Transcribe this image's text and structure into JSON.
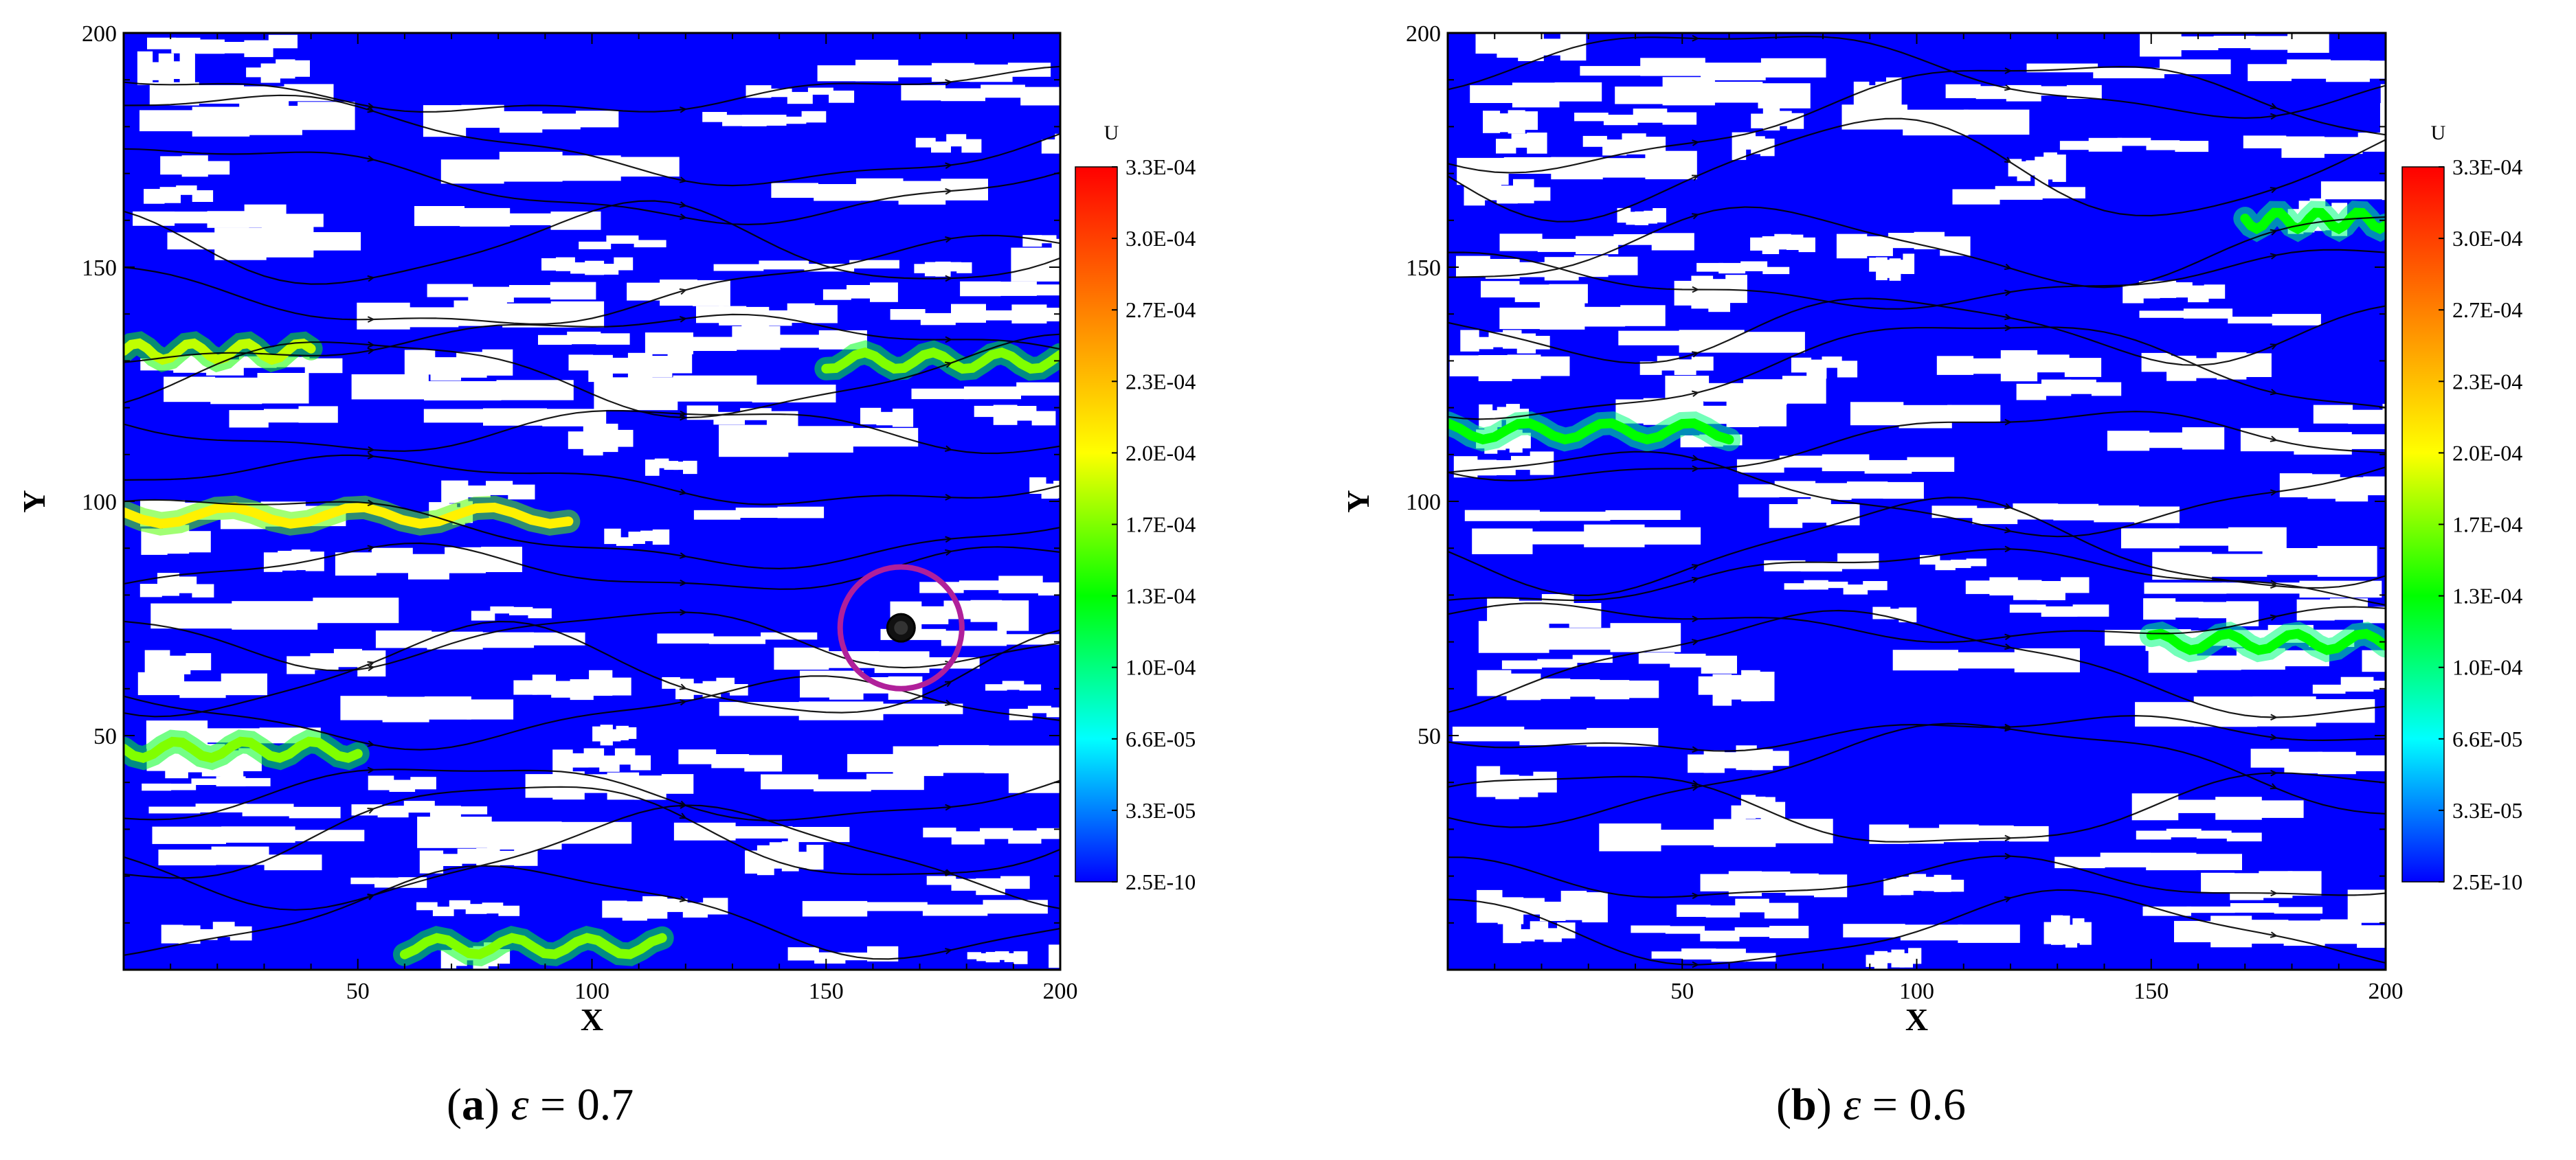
{
  "chart_data": [
    {
      "type": "heatmap",
      "subtype": "velocity-field-with-streamlines",
      "panel_label": "a",
      "parameter_symbol": "ε",
      "parameter_value": "0.7",
      "xlabel": "X",
      "ylabel": "Y",
      "xlim": [
        0,
        200
      ],
      "ylim": [
        0,
        200
      ],
      "xticks": [
        50,
        100,
        150,
        200
      ],
      "yticks": [
        50,
        100,
        150,
        200
      ],
      "colorbar": {
        "title": "U",
        "labels": [
          "3.3E-04",
          "3.0E-04",
          "2.7E-04",
          "2.3E-04",
          "2.0E-04",
          "1.7E-04",
          "1.3E-04",
          "1.0E-04",
          "6.6E-05",
          "3.3E-05",
          "2.5E-10"
        ],
        "colors": [
          "#ff0000",
          "#ff8000",
          "#ffff00",
          "#00ff00",
          "#00ffff",
          "#0000ff"
        ]
      },
      "solid_color": "#ffffff",
      "streamline_color": "#000000",
      "high_velocity_channels": [
        {
          "y": 132,
          "x_range": [
            0,
            40
          ],
          "level": 0.55
        },
        {
          "y": 97,
          "x_range": [
            0,
            95
          ],
          "level": 0.62
        },
        {
          "y": 130,
          "x_range": [
            150,
            200
          ],
          "level": 0.5
        },
        {
          "y": 47,
          "x_range": [
            0,
            50
          ],
          "level": 0.5
        },
        {
          "y": 5,
          "x_range": [
            60,
            115
          ],
          "level": 0.5
        }
      ],
      "highlight_circle": {
        "x": 166,
        "y": 73,
        "radius": 13,
        "color": "#b0209a"
      },
      "marker": {
        "x": 166,
        "y": 73
      }
    },
    {
      "type": "heatmap",
      "subtype": "velocity-field-with-streamlines",
      "panel_label": "b",
      "parameter_symbol": "ε",
      "parameter_value": "0.6",
      "xlabel": "X",
      "ylabel": "Y",
      "xlim": [
        0,
        200
      ],
      "ylim": [
        0,
        200
      ],
      "xticks": [
        50,
        100,
        150,
        200
      ],
      "yticks": [
        50,
        100,
        150,
        200
      ],
      "colorbar": {
        "title": "U",
        "labels": [
          "3.3E-04",
          "3.0E-04",
          "2.7E-04",
          "2.3E-04",
          "2.0E-04",
          "1.7E-04",
          "1.3E-04",
          "1.0E-04",
          "6.6E-05",
          "3.3E-05",
          "2.5E-10"
        ],
        "colors": [
          "#ff0000",
          "#ff8000",
          "#ffff00",
          "#00ff00",
          "#00ffff",
          "#0000ff"
        ]
      },
      "solid_color": "#ffffff",
      "streamline_color": "#000000",
      "high_velocity_channels": [
        {
          "y": 115,
          "x_range": [
            0,
            60
          ],
          "level": 0.4
        },
        {
          "y": 70,
          "x_range": [
            150,
            200
          ],
          "level": 0.4
        },
        {
          "y": 160,
          "x_range": [
            170,
            200
          ],
          "level": 0.4
        }
      ]
    }
  ]
}
